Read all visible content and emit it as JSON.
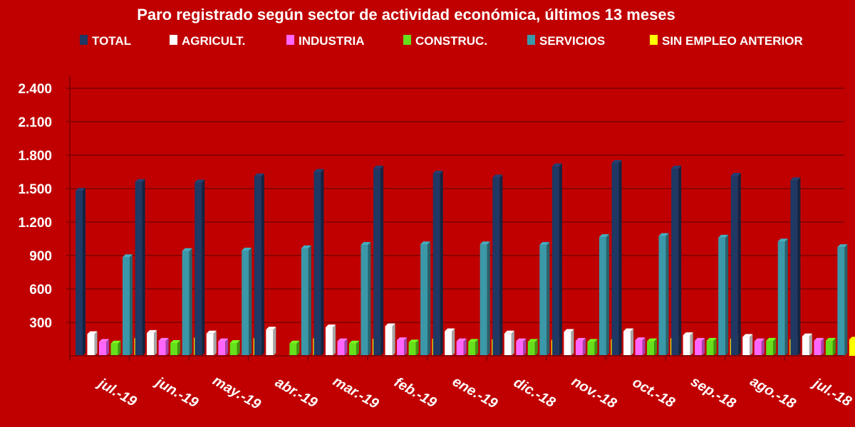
{
  "chart_data": {
    "type": "bar",
    "title": "Paro registrado según sector de actividad económica, últimos 13 meses",
    "categories": [
      "jul.-19",
      "jun.-19",
      "may.-19",
      "abr.-19",
      "mar.-19",
      "feb.-19",
      "ene.-19",
      "dic.-18",
      "nov.-18",
      "oct.-18",
      "sep.-18",
      "ago.-18",
      "jul.-18"
    ],
    "series": [
      {
        "name": "TOTAL",
        "color": "#1f3864",
        "values": [
          1480,
          1560,
          1555,
          1610,
          1650,
          1680,
          1635,
          1600,
          1700,
          1730,
          1680,
          1615,
          1575
        ]
      },
      {
        "name": "AGRICULT.",
        "color": "#ffffff",
        "values": [
          195,
          205,
          200,
          235,
          255,
          265,
          220,
          200,
          215,
          220,
          185,
          170,
          175
        ]
      },
      {
        "name": "INDUSTRIA",
        "color": "#ff66ff",
        "values": [
          125,
          135,
          130,
          0,
          130,
          140,
          130,
          130,
          135,
          140,
          135,
          130,
          135
        ]
      },
      {
        "name": "CONSTRUC.",
        "color": "#66e01a",
        "values": [
          110,
          115,
          115,
          110,
          110,
          120,
          125,
          125,
          125,
          130,
          135,
          135,
          135
        ]
      },
      {
        "name": "SERVICIOS",
        "color": "#3a98a8",
        "values": [
          885,
          940,
          945,
          965,
          995,
          1000,
          1000,
          995,
          1065,
          1075,
          1060,
          1025,
          975
        ]
      },
      {
        "name": "SIN EMPLEO ANTERIOR",
        "color": "#ffff00",
        "values": [
          155,
          160,
          155,
          155,
          150,
          150,
          145,
          140,
          145,
          155,
          150,
          145,
          145
        ]
      }
    ],
    "yticks": [
      "2.400",
      "2.100",
      "1.800",
      "1.500",
      "1.200",
      "900",
      "600",
      "300"
    ],
    "ylim": [
      0,
      2400
    ],
    "grid": true,
    "legend": "top"
  }
}
